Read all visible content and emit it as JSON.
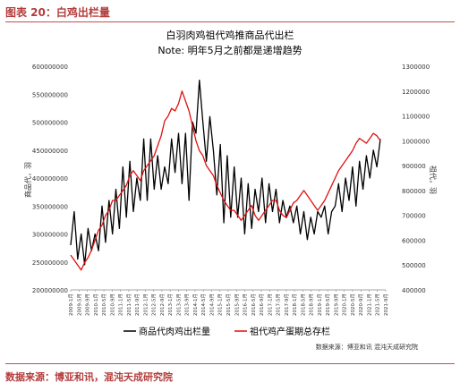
{
  "header": {
    "label": "图表 20：白鸡出栏量"
  },
  "footer": {
    "source": "数据来源：博亚和讯，混沌天成研究院"
  },
  "chart_data": {
    "type": "line",
    "title": "白羽肉鸡祖代鸡推商品代出栏",
    "subtitle": "Note: 明年5月之前都是递增趋势",
    "ylabel_left": "商品代，羽",
    "ylabel_right": "祖代，羽",
    "source_note": "数据来源：博亚和讯 混沌天成研究院",
    "xlabels": [
      "2009-1月",
      "2009-5月",
      "2009-9月",
      "2010-1月",
      "2010-5月",
      "2010-9月",
      "2011-1月",
      "2011-5月",
      "2011-9月",
      "2012-1月",
      "2012-5月",
      "2012-9月",
      "2013-1月",
      "2013-5月",
      "2013-9月",
      "2014-1月",
      "2014-5月",
      "2014-9月",
      "2015-1月",
      "2015-5月",
      "2015-9月",
      "2016-1月",
      "2016-5月",
      "2016-9月",
      "2017-1月",
      "2017-5月",
      "2017-9月",
      "2018-1月",
      "2018-5月",
      "2018-9月",
      "2019-1月",
      "2019-5月",
      "2019-9月",
      "2020-1月",
      "2020-5月",
      "2020-9月",
      "2021-1月",
      "2021-5月",
      "2021-9月"
    ],
    "yticks_left": [
      "200000000",
      "250000000",
      "300000000",
      "350000000",
      "400000000",
      "450000000",
      "500000000",
      "550000000",
      "600000000"
    ],
    "yticks_right": [
      "400000",
      "500000",
      "600000",
      "700000",
      "800000",
      "900000",
      "1000000",
      "1100000",
      "1200000",
      "1300000"
    ],
    "ylim_left": [
      200000000,
      600000000
    ],
    "ylim_right": [
      400000,
      1300000
    ],
    "series": [
      {
        "name": "商品代肉鸡出栏量",
        "color": "#000000",
        "axis": "left",
        "values": [
          280000000,
          340000000,
          255000000,
          300000000,
          245000000,
          310000000,
          270000000,
          300000000,
          270000000,
          350000000,
          285000000,
          360000000,
          300000000,
          380000000,
          310000000,
          420000000,
          330000000,
          430000000,
          340000000,
          400000000,
          360000000,
          470000000,
          360000000,
          470000000,
          380000000,
          440000000,
          380000000,
          420000000,
          390000000,
          470000000,
          410000000,
          480000000,
          390000000,
          480000000,
          360000000,
          500000000,
          480000000,
          575000000,
          500000000,
          430000000,
          510000000,
          450000000,
          370000000,
          460000000,
          320000000,
          440000000,
          330000000,
          420000000,
          330000000,
          400000000,
          300000000,
          390000000,
          310000000,
          380000000,
          340000000,
          400000000,
          320000000,
          390000000,
          340000000,
          380000000,
          320000000,
          360000000,
          330000000,
          350000000,
          320000000,
          350000000,
          300000000,
          340000000,
          290000000,
          330000000,
          300000000,
          340000000,
          330000000,
          350000000,
          300000000,
          340000000,
          350000000,
          390000000,
          340000000,
          400000000,
          360000000,
          420000000,
          350000000,
          430000000,
          380000000,
          440000000,
          400000000,
          450000000,
          420000000,
          470000000
        ]
      },
      {
        "name": "祖代鸡产蛋期总存栏",
        "color": "#e01010",
        "axis": "right",
        "values": [
          540000,
          520000,
          500000,
          480000,
          510000,
          530000,
          560000,
          600000,
          640000,
          660000,
          700000,
          720000,
          760000,
          760000,
          780000,
          800000,
          820000,
          860000,
          880000,
          860000,
          840000,
          880000,
          900000,
          920000,
          940000,
          980000,
          1020000,
          1080000,
          1100000,
          1130000,
          1120000,
          1150000,
          1200000,
          1160000,
          1120000,
          1060000,
          1000000,
          960000,
          940000,
          900000,
          880000,
          860000,
          820000,
          790000,
          760000,
          740000,
          720000,
          720000,
          700000,
          680000,
          700000,
          720000,
          740000,
          700000,
          680000,
          700000,
          720000,
          740000,
          760000,
          760000,
          720000,
          700000,
          690000,
          720000,
          750000,
          760000,
          780000,
          800000,
          780000,
          760000,
          740000,
          720000,
          740000,
          760000,
          790000,
          820000,
          850000,
          880000,
          900000,
          920000,
          940000,
          960000,
          990000,
          1010000,
          1000000,
          990000,
          1010000,
          1030000,
          1020000,
          1000000
        ]
      }
    ]
  }
}
